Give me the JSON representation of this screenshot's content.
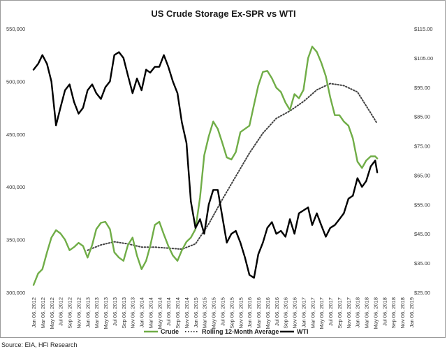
{
  "chart_data": {
    "type": "line",
    "title": "US Crude Storage Ex-SPR vs WTI",
    "source": "Source: EIA, HFI Research",
    "left_axis": {
      "ticks": [
        "300,000",
        "350,000",
        "400,000",
        "450,000",
        "500,000",
        "550,000"
      ],
      "range": [
        300000,
        550000
      ]
    },
    "right_axis": {
      "ticks": [
        "$25.00",
        "$35.00",
        "$45.00",
        "$55.00",
        "$65.00",
        "$75.00",
        "$85.00",
        "$95.00",
        "$105.00",
        "$115.00"
      ],
      "range": [
        25,
        115
      ]
    },
    "x_ticks": [
      "Jan 06, 2012",
      "Mar 06, 2012",
      "May 06, 2012",
      "Jul 06, 2012",
      "Sep 06, 2012",
      "Nov 06, 2012",
      "Jan 06, 2013",
      "Mar 06, 2013",
      "May 06, 2013",
      "Jul 06, 2013",
      "Sep 06, 2013",
      "Nov 06, 2013",
      "Jan 06, 2014",
      "Mar 06, 2014",
      "May 06, 2014",
      "Jul 06, 2014",
      "Sep 06, 2014",
      "Nov 06, 2014",
      "Jan 06, 2015",
      "Mar 06, 2015",
      "May 06, 2015",
      "Jul 06, 2015",
      "Sep 06, 2015",
      "Nov 06, 2015",
      "Jan 06, 2016",
      "Mar 06, 2016",
      "May 06, 2016",
      "Jul 06, 2016",
      "Sep 06, 2016",
      "Nov 06, 2016",
      "Jan 06, 2017",
      "Mar 06, 2017",
      "May 06, 2017",
      "Jul 06, 2017",
      "Sep 06, 2017",
      "Nov 06, 2017",
      "Jan 06, 2018",
      "Mar 06, 2018",
      "May 06, 2018",
      "Jul 06, 2018",
      "Sep 06, 2018",
      "Nov 06, 2018",
      "Jan 06, 2019"
    ],
    "x_range": [
      "2012-01-06",
      "2019-01-06"
    ],
    "grid": false,
    "legend_position": "bottom",
    "series": [
      {
        "name": "Crude",
        "axis": "left",
        "color": "#70ad47",
        "style": "solid",
        "points": [
          [
            "2012-01-06",
            307000
          ],
          [
            "2012-02-06",
            318000
          ],
          [
            "2012-03-06",
            322000
          ],
          [
            "2012-04-06",
            338000
          ],
          [
            "2012-05-06",
            352000
          ],
          [
            "2012-06-06",
            359000
          ],
          [
            "2012-07-06",
            356000
          ],
          [
            "2012-08-06",
            350000
          ],
          [
            "2012-09-06",
            340000
          ],
          [
            "2012-10-06",
            343000
          ],
          [
            "2012-11-06",
            347000
          ],
          [
            "2012-12-06",
            344000
          ],
          [
            "2013-01-06",
            333000
          ],
          [
            "2013-02-06",
            345000
          ],
          [
            "2013-03-06",
            360000
          ],
          [
            "2013-04-06",
            366000
          ],
          [
            "2013-05-06",
            367000
          ],
          [
            "2013-06-06",
            360000
          ],
          [
            "2013-07-06",
            338000
          ],
          [
            "2013-08-06",
            333000
          ],
          [
            "2013-09-06",
            330000
          ],
          [
            "2013-10-06",
            345000
          ],
          [
            "2013-11-06",
            352000
          ],
          [
            "2013-12-06",
            335000
          ],
          [
            "2014-01-06",
            322000
          ],
          [
            "2014-02-06",
            330000
          ],
          [
            "2014-03-06",
            344000
          ],
          [
            "2014-04-06",
            364000
          ],
          [
            "2014-05-06",
            367000
          ],
          [
            "2014-06-06",
            355000
          ],
          [
            "2014-07-06",
            344000
          ],
          [
            "2014-08-06",
            335000
          ],
          [
            "2014-09-06",
            330000
          ],
          [
            "2014-10-06",
            340000
          ],
          [
            "2014-11-06",
            348000
          ],
          [
            "2014-12-06",
            352000
          ],
          [
            "2015-01-06",
            360000
          ],
          [
            "2015-02-06",
            390000
          ],
          [
            "2015-03-06",
            430000
          ],
          [
            "2015-04-06",
            448000
          ],
          [
            "2015-05-06",
            462000
          ],
          [
            "2015-06-06",
            455000
          ],
          [
            "2015-07-06",
            442000
          ],
          [
            "2015-08-06",
            428000
          ],
          [
            "2015-09-06",
            426000
          ],
          [
            "2015-10-06",
            433000
          ],
          [
            "2015-11-06",
            452000
          ],
          [
            "2015-12-06",
            455000
          ],
          [
            "2016-01-06",
            458000
          ],
          [
            "2016-02-06",
            478000
          ],
          [
            "2016-03-06",
            496000
          ],
          [
            "2016-04-06",
            509000
          ],
          [
            "2016-05-06",
            510000
          ],
          [
            "2016-06-06",
            503000
          ],
          [
            "2016-07-06",
            494000
          ],
          [
            "2016-08-06",
            490000
          ],
          [
            "2016-09-06",
            480000
          ],
          [
            "2016-10-06",
            473000
          ],
          [
            "2016-11-06",
            488000
          ],
          [
            "2016-12-06",
            484000
          ],
          [
            "2017-01-06",
            492000
          ],
          [
            "2017-02-06",
            522000
          ],
          [
            "2017-03-06",
            533000
          ],
          [
            "2017-04-06",
            528000
          ],
          [
            "2017-05-06",
            518000
          ],
          [
            "2017-06-06",
            505000
          ],
          [
            "2017-07-06",
            485000
          ],
          [
            "2017-08-06",
            468000
          ],
          [
            "2017-09-06",
            468000
          ],
          [
            "2017-10-06",
            462000
          ],
          [
            "2017-11-06",
            458000
          ],
          [
            "2017-12-06",
            446000
          ],
          [
            "2018-01-06",
            424000
          ],
          [
            "2018-02-06",
            418000
          ],
          [
            "2018-03-06",
            425000
          ],
          [
            "2018-04-06",
            429000
          ],
          [
            "2018-05-06",
            429000
          ],
          [
            "2018-05-20",
            427000
          ]
        ]
      },
      {
        "name": "Rolling 12-Month Average",
        "axis": "left",
        "color": "#404040",
        "style": "dotted",
        "points": [
          [
            "2013-01-06",
            340000
          ],
          [
            "2013-04-06",
            345000
          ],
          [
            "2013-07-06",
            348000
          ],
          [
            "2013-10-06",
            346000
          ],
          [
            "2014-01-06",
            343000
          ],
          [
            "2014-04-06",
            343000
          ],
          [
            "2014-07-06",
            342000
          ],
          [
            "2014-10-06",
            341000
          ],
          [
            "2015-01-06",
            346000
          ],
          [
            "2015-04-06",
            365000
          ],
          [
            "2015-07-06",
            388000
          ],
          [
            "2015-10-06",
            410000
          ],
          [
            "2016-01-06",
            432000
          ],
          [
            "2016-04-06",
            451000
          ],
          [
            "2016-07-06",
            465000
          ],
          [
            "2016-10-06",
            472000
          ],
          [
            "2017-01-06",
            481000
          ],
          [
            "2017-04-06",
            492000
          ],
          [
            "2017-07-06",
            498000
          ],
          [
            "2017-10-06",
            496000
          ],
          [
            "2018-01-06",
            490000
          ],
          [
            "2018-04-06",
            470000
          ],
          [
            "2018-05-20",
            460000
          ]
        ]
      },
      {
        "name": "WTI",
        "axis": "right",
        "color": "#000000",
        "style": "solid",
        "points": [
          [
            "2012-01-06",
            101
          ],
          [
            "2012-02-06",
            103
          ],
          [
            "2012-03-06",
            106
          ],
          [
            "2012-04-06",
            103
          ],
          [
            "2012-05-06",
            97
          ],
          [
            "2012-06-06",
            82
          ],
          [
            "2012-07-06",
            88
          ],
          [
            "2012-08-06",
            94
          ],
          [
            "2012-09-06",
            96
          ],
          [
            "2012-10-06",
            90
          ],
          [
            "2012-11-06",
            86
          ],
          [
            "2012-12-06",
            88
          ],
          [
            "2013-01-06",
            94
          ],
          [
            "2013-02-06",
            96
          ],
          [
            "2013-03-06",
            93
          ],
          [
            "2013-04-06",
            91
          ],
          [
            "2013-05-06",
            95
          ],
          [
            "2013-06-06",
            97
          ],
          [
            "2013-07-06",
            106
          ],
          [
            "2013-08-06",
            107
          ],
          [
            "2013-09-06",
            105
          ],
          [
            "2013-10-06",
            99
          ],
          [
            "2013-11-06",
            93
          ],
          [
            "2013-12-06",
            98
          ],
          [
            "2014-01-06",
            94
          ],
          [
            "2014-02-06",
            101
          ],
          [
            "2014-03-06",
            100
          ],
          [
            "2014-04-06",
            102
          ],
          [
            "2014-05-06",
            102
          ],
          [
            "2014-06-06",
            106
          ],
          [
            "2014-07-06",
            102
          ],
          [
            "2014-08-06",
            97
          ],
          [
            "2014-09-06",
            93
          ],
          [
            "2014-10-06",
            83
          ],
          [
            "2014-11-06",
            76
          ],
          [
            "2014-12-06",
            56
          ],
          [
            "2015-01-06",
            47
          ],
          [
            "2015-02-06",
            50
          ],
          [
            "2015-03-06",
            45
          ],
          [
            "2015-04-06",
            55
          ],
          [
            "2015-05-06",
            60
          ],
          [
            "2015-06-06",
            60
          ],
          [
            "2015-07-06",
            51
          ],
          [
            "2015-08-06",
            42
          ],
          [
            "2015-09-06",
            45
          ],
          [
            "2015-10-06",
            46
          ],
          [
            "2015-11-06",
            42
          ],
          [
            "2015-12-06",
            37
          ],
          [
            "2016-01-06",
            31
          ],
          [
            "2016-02-06",
            30
          ],
          [
            "2016-03-06",
            38
          ],
          [
            "2016-04-06",
            42
          ],
          [
            "2016-05-06",
            47
          ],
          [
            "2016-06-06",
            49
          ],
          [
            "2016-07-06",
            45
          ],
          [
            "2016-08-06",
            46
          ],
          [
            "2016-09-06",
            44
          ],
          [
            "2016-10-06",
            50
          ],
          [
            "2016-11-06",
            45
          ],
          [
            "2016-12-06",
            52
          ],
          [
            "2017-01-06",
            53
          ],
          [
            "2017-02-06",
            54
          ],
          [
            "2017-03-06",
            48
          ],
          [
            "2017-04-06",
            52
          ],
          [
            "2017-05-06",
            48
          ],
          [
            "2017-06-06",
            44
          ],
          [
            "2017-07-06",
            47
          ],
          [
            "2017-08-06",
            48
          ],
          [
            "2017-09-06",
            50
          ],
          [
            "2017-10-06",
            52
          ],
          [
            "2017-11-06",
            57
          ],
          [
            "2017-12-06",
            58
          ],
          [
            "2018-01-06",
            64
          ],
          [
            "2018-02-06",
            61
          ],
          [
            "2018-03-06",
            63
          ],
          [
            "2018-04-06",
            68
          ],
          [
            "2018-05-06",
            70
          ],
          [
            "2018-05-20",
            66
          ]
        ]
      }
    ]
  }
}
